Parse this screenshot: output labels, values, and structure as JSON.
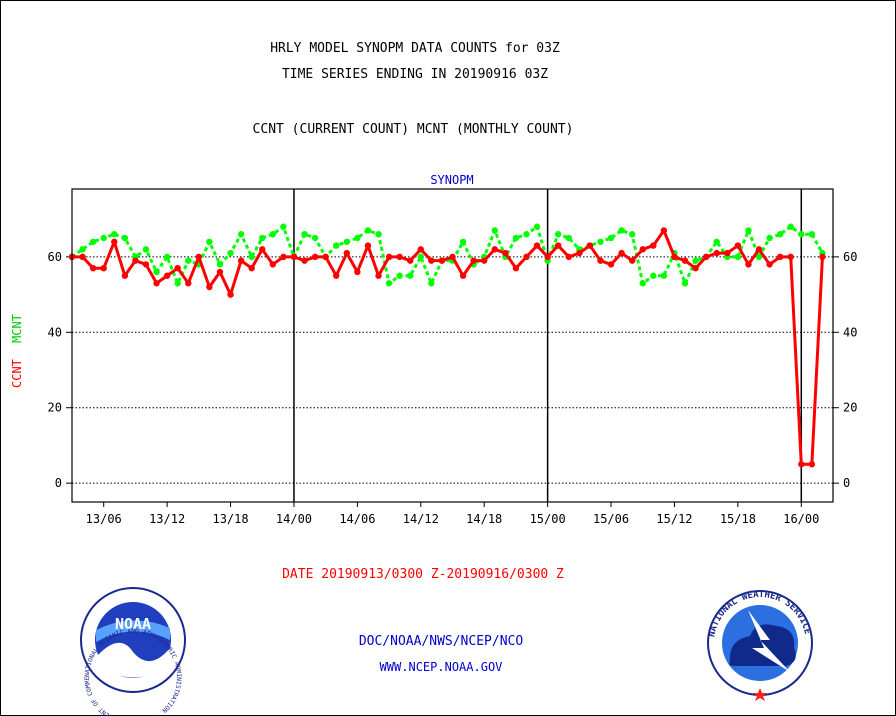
{
  "header": {
    "title_line1": "HRLY MODEL SYNOPM DATA COUNTS for 03Z",
    "title_line2": "TIME SERIES ENDING IN 20190916 03Z",
    "legend_line": "CCNT (CURRENT COUNT) MCNT (MONTHLY COUNT)"
  },
  "footer": {
    "date_range": "DATE 20190913/0300 Z-20190916/0300 Z",
    "org_line": "DOC/NOAA/NWS/NCEP/NCO",
    "url_line": "WWW.NCEP.NOAA.GOV",
    "noaa_logo_text": "NOAA",
    "noaa_seal_text": "NATIONAL OCEANIC AND ATMOSPHERIC ADMINISTRATION · U.S. DEPARTMENT OF COMMERCE ·",
    "nws_seal_text": "NATIONAL WEATHER SERVICE"
  },
  "colors": {
    "ccnt": "#ff0000",
    "mcnt": "#00ff00",
    "subtitle": "#0000cc",
    "footer_link": "#0000cc",
    "date_text": "#ff0000"
  },
  "chart_data": {
    "type": "line",
    "subtitle": "SYNOPM",
    "ylabel_left_ccnt": "CCNT",
    "ylabel_left_mcnt": "MCNT",
    "ylim": [
      -5,
      78
    ],
    "xlim": [
      0,
      72
    ],
    "yticks": [
      0,
      20,
      40,
      60
    ],
    "xtick_labels": [
      {
        "x": 3,
        "label": "13/06"
      },
      {
        "x": 9,
        "label": "13/12"
      },
      {
        "x": 15,
        "label": "13/18"
      },
      {
        "x": 21,
        "label": "14/00"
      },
      {
        "x": 27,
        "label": "14/06"
      },
      {
        "x": 33,
        "label": "14/12"
      },
      {
        "x": 39,
        "label": "14/18"
      },
      {
        "x": 45,
        "label": "15/00"
      },
      {
        "x": 51,
        "label": "15/06"
      },
      {
        "x": 57,
        "label": "15/12"
      },
      {
        "x": 63,
        "label": "15/18"
      },
      {
        "x": 69,
        "label": "16/00"
      }
    ],
    "day_boundaries": [
      21,
      45,
      69
    ],
    "grid": "horizontal dotted",
    "series": [
      {
        "name": "CCNT",
        "values": [
          60,
          60,
          57,
          57,
          64,
          55,
          59,
          58,
          53,
          55,
          57,
          53,
          60,
          52,
          56,
          50,
          59,
          57,
          62,
          58,
          60,
          60,
          59,
          60,
          60,
          55,
          61,
          56,
          63,
          55,
          60,
          60,
          59,
          62,
          59,
          59,
          60,
          55,
          59,
          59,
          62,
          61,
          57,
          60,
          63,
          60,
          63,
          60,
          61,
          63,
          59,
          58,
          61,
          59,
          62,
          63,
          67,
          60,
          59,
          57,
          60,
          61,
          61,
          63,
          58,
          62,
          58,
          60,
          60,
          5,
          5,
          60
        ]
      },
      {
        "name": "MCNT",
        "values": [
          60,
          62,
          64,
          65,
          66,
          65,
          60,
          62,
          56,
          60,
          53,
          59,
          58,
          64,
          58,
          61,
          66,
          60,
          65,
          66,
          68,
          60,
          66,
          65,
          60,
          63,
          64,
          65,
          67,
          66,
          53,
          55,
          55,
          60,
          53,
          59,
          59,
          64,
          58,
          60,
          67,
          60,
          65,
          66,
          68,
          59,
          66,
          65,
          62,
          63,
          64,
          65,
          67,
          66,
          53,
          55,
          55,
          61,
          53,
          59,
          60,
          64,
          60,
          60,
          67,
          60,
          65,
          66,
          68,
          66,
          66,
          61
        ]
      }
    ]
  }
}
